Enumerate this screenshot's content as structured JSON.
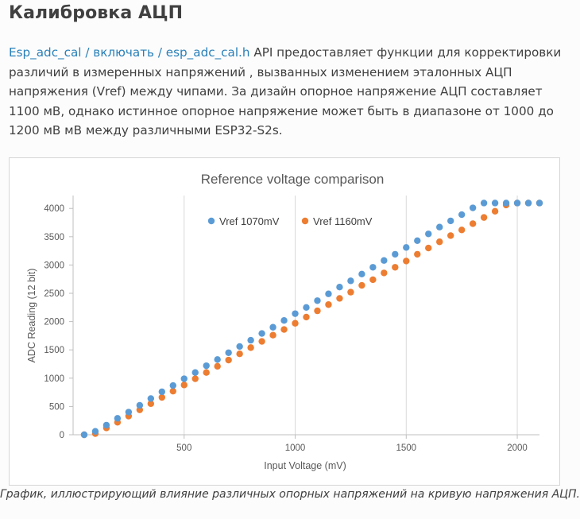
{
  "page": {
    "title": "Калибровка АЦП",
    "link_parts": [
      "Esp_adc_cal",
      " / ",
      "включать",
      " / ",
      "esp_adc_cal.h"
    ],
    "paragraph_text": " API предоставляет функции для корректировки различий в измеренных напряжений , вызванных изменением эталонных АЦП напряжения (Vref) между чипами. За дизайн опорное напряжение АЦП составляет 1100 мВ, однако истинное опорное напряжение может быть в диапазоне от 1000 до 1200 мВ мВ между различными ESP32-S2s.",
    "caption": "График, иллюстрирующий влияние различных опорных напряжений на кривую напряжения АЦП.",
    "accent_link_color": "#2980b9"
  },
  "chart_data": {
    "type": "scatter",
    "title": "Reference voltage comparison",
    "xlabel": "Input Voltage (mV)",
    "ylabel": "ADC Reading (12 bit)",
    "xlim": [
      0,
      2100
    ],
    "ylim": [
      0,
      4200
    ],
    "x_ticks": [
      500,
      1000,
      1500,
      2000
    ],
    "y_ticks": [
      0,
      500,
      1000,
      1500,
      2000,
      2500,
      3000,
      3500,
      4000
    ],
    "grid": "vertical",
    "legend": "top-center",
    "series": [
      {
        "name": "Vref 1070mV",
        "color": "#5b9bd5",
        "points": [
          [
            50,
            0
          ],
          [
            100,
            60
          ],
          [
            150,
            170
          ],
          [
            200,
            290
          ],
          [
            250,
            400
          ],
          [
            300,
            520
          ],
          [
            350,
            640
          ],
          [
            400,
            760
          ],
          [
            450,
            870
          ],
          [
            500,
            990
          ],
          [
            550,
            1100
          ],
          [
            600,
            1220
          ],
          [
            650,
            1330
          ],
          [
            700,
            1450
          ],
          [
            750,
            1560
          ],
          [
            800,
            1670
          ],
          [
            850,
            1790
          ],
          [
            900,
            1900
          ],
          [
            950,
            2020
          ],
          [
            1000,
            2140
          ],
          [
            1050,
            2250
          ],
          [
            1100,
            2370
          ],
          [
            1150,
            2490
          ],
          [
            1200,
            2610
          ],
          [
            1250,
            2720
          ],
          [
            1300,
            2840
          ],
          [
            1350,
            2960
          ],
          [
            1400,
            3080
          ],
          [
            1450,
            3190
          ],
          [
            1500,
            3310
          ],
          [
            1550,
            3430
          ],
          [
            1600,
            3550
          ],
          [
            1650,
            3670
          ],
          [
            1700,
            3780
          ],
          [
            1750,
            3890
          ],
          [
            1800,
            4010
          ],
          [
            1850,
            4095
          ],
          [
            1900,
            4095
          ],
          [
            1950,
            4095
          ],
          [
            2000,
            4095
          ],
          [
            2050,
            4095
          ],
          [
            2100,
            4095
          ]
        ]
      },
      {
        "name": "Vref 1160mV",
        "color": "#ed7d31",
        "points": [
          [
            50,
            0
          ],
          [
            100,
            20
          ],
          [
            150,
            120
          ],
          [
            200,
            220
          ],
          [
            250,
            330
          ],
          [
            300,
            440
          ],
          [
            350,
            550
          ],
          [
            400,
            660
          ],
          [
            450,
            770
          ],
          [
            500,
            880
          ],
          [
            550,
            990
          ],
          [
            600,
            1100
          ],
          [
            650,
            1210
          ],
          [
            700,
            1320
          ],
          [
            750,
            1430
          ],
          [
            800,
            1540
          ],
          [
            850,
            1650
          ],
          [
            900,
            1760
          ],
          [
            950,
            1860
          ],
          [
            1000,
            1970
          ],
          [
            1050,
            2080
          ],
          [
            1100,
            2190
          ],
          [
            1150,
            2300
          ],
          [
            1200,
            2410
          ],
          [
            1250,
            2520
          ],
          [
            1300,
            2640
          ],
          [
            1350,
            2740
          ],
          [
            1400,
            2860
          ],
          [
            1450,
            2960
          ],
          [
            1500,
            3070
          ],
          [
            1550,
            3190
          ],
          [
            1600,
            3300
          ],
          [
            1650,
            3410
          ],
          [
            1700,
            3520
          ],
          [
            1750,
            3620
          ],
          [
            1800,
            3730
          ],
          [
            1850,
            3840
          ],
          [
            1900,
            3950
          ],
          [
            1950,
            4060
          ],
          [
            2000,
            4095
          ],
          [
            2050,
            4095
          ],
          [
            2100,
            4095
          ]
        ]
      }
    ]
  }
}
